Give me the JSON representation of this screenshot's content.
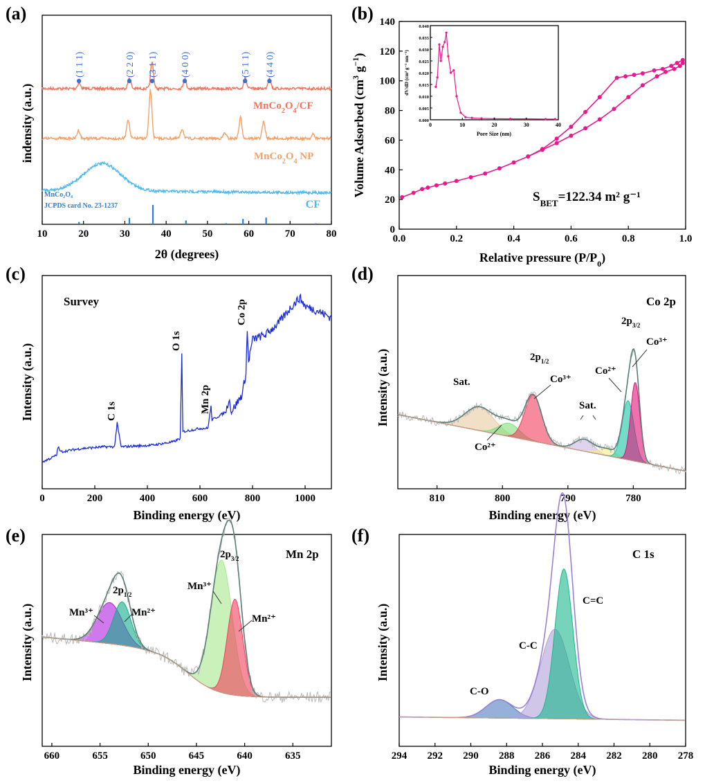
{
  "chart_data": [
    {
      "id": "a",
      "type": "line",
      "panel_label": "(a)",
      "xlabel": "2θ (degrees)",
      "ylabel": "indensity (a.u.)",
      "xlim": [
        10,
        80
      ],
      "xticks": [
        "10",
        "20",
        "30",
        "40",
        "50",
        "60",
        "70",
        "80"
      ],
      "series": [
        {
          "name": "MnCo₂O₄/CF",
          "color": "#f0735a",
          "peaks": [
            [
              18.9,
              8
            ],
            [
              31.1,
              16
            ],
            [
              36.6,
              38
            ],
            [
              44.5,
              14
            ],
            [
              59.1,
              16
            ],
            [
              65.0,
              16
            ]
          ],
          "baseline": 0.15
        },
        {
          "name": "MnCo₂O₄ NP",
          "color": "#f5a066",
          "peaks": [
            [
              18.8,
              12
            ],
            [
              30.8,
              28
            ],
            [
              36.2,
              70
            ],
            [
              43.9,
              14
            ],
            [
              54.2,
              8
            ],
            [
              58.0,
              30
            ],
            [
              63.6,
              24
            ],
            [
              75.6,
              6
            ]
          ],
          "baseline": 0.45
        },
        {
          "name": "CF",
          "color": "#4fb8ee",
          "broad_peak": [
            24.5,
            44
          ],
          "baseline": 0.74
        }
      ],
      "reference": {
        "label_line1": "MnCo₂O₄",
        "label_line2": "JCPDS card No. 23-1237",
        "color": "#2a7de1",
        "positions": [
          18.9,
          31.1,
          36.8,
          44.8,
          54.5,
          58.6,
          64.2,
          76.2
        ],
        "intensities": [
          0.12,
          0.33,
          1.0,
          0.2,
          0.06,
          0.28,
          0.35,
          0.05
        ]
      },
      "hkl_labels": [
        {
          "x": 18.9,
          "text": "(1 1 1)"
        },
        {
          "x": 31.1,
          "text": "(2 2 0)"
        },
        {
          "x": 36.6,
          "text": "(3 1 1)"
        },
        {
          "x": 44.5,
          "text": "(4 0 0)"
        },
        {
          "x": 59.1,
          "text": "(5 1 1)"
        },
        {
          "x": 65.0,
          "text": "(4 4 0)"
        }
      ]
    },
    {
      "id": "b",
      "type": "line",
      "panel_label": "(b)",
      "xlabel": "Relative pressure (P/P₀)",
      "ylabel": "Volume Adsorbed (cm³ g⁻¹)",
      "xlim": [
        0,
        1.0
      ],
      "ylim": [
        0,
        140
      ],
      "xticks": [
        "0.0",
        "0.2",
        "0.4",
        "0.6",
        "0.8",
        "1.0"
      ],
      "yticks": [
        "0",
        "20",
        "40",
        "60",
        "80",
        "100",
        "120",
        "140"
      ],
      "color": "#e6198f",
      "adsorption": {
        "x": [
          0.01,
          0.05,
          0.08,
          0.1,
          0.13,
          0.16,
          0.2,
          0.25,
          0.3,
          0.35,
          0.4,
          0.45,
          0.5,
          0.55,
          0.6,
          0.65,
          0.7,
          0.75,
          0.8,
          0.85,
          0.9,
          0.93,
          0.96,
          0.98,
          0.99
        ],
        "y": [
          21.5,
          24.5,
          27,
          28,
          29.5,
          30.8,
          32.5,
          35,
          37.5,
          41,
          45,
          49,
          53.5,
          58,
          63,
          68,
          74,
          81,
          89,
          97,
          103,
          106,
          108,
          110,
          112
        ]
      },
      "desorption": {
        "x": [
          0.99,
          0.97,
          0.95,
          0.92,
          0.89,
          0.85,
          0.82,
          0.79,
          0.76,
          0.7,
          0.65,
          0.6,
          0.55,
          0.5,
          0.45
        ],
        "y": [
          114,
          112,
          110,
          108,
          107,
          105,
          104,
          103,
          102,
          89,
          79,
          69,
          61,
          54,
          49
        ]
      },
      "annotation": "S",
      "annotation_sub": "BET",
      "annotation_rest": "=122.34 m² g⁻¹",
      "inset": {
        "xlabel": "Pore Size (nm)",
        "ylabel": "dV/dD (cm³ g⁻¹ nm⁻¹)",
        "xlim": [
          0,
          40
        ],
        "ylim": [
          0,
          0.04
        ],
        "xticks": [
          "0",
          "10",
          "20",
          "30",
          "40"
        ],
        "yticks": [
          "0.000",
          "0.005",
          "0.010",
          "0.015",
          "0.020",
          "0.025",
          "0.030",
          "0.035",
          "0.040"
        ],
        "x": [
          1.7,
          2.2,
          2.8,
          3.3,
          3.9,
          4.5,
          5.0,
          5.6,
          6.4,
          7.3,
          8.2,
          9.5,
          11,
          13,
          16,
          20,
          25,
          30,
          36,
          39
        ],
        "y": [
          0.014,
          0.018,
          0.032,
          0.025,
          0.031,
          0.033,
          0.037,
          0.027,
          0.02,
          0.021,
          0.01,
          0.003,
          0.0011,
          0.0008,
          0.0006,
          0.0005,
          0.0004,
          0.0004,
          0.0003,
          0.0003
        ]
      }
    },
    {
      "id": "c",
      "type": "line",
      "panel_label": "(c)",
      "title": "Survey",
      "xlabel": "Binding energy (eV)",
      "ylabel": "Intensity (a.u.)",
      "xlim": [
        0,
        1100
      ],
      "ylim": [
        0,
        1
      ],
      "xticks": [
        "0",
        "200",
        "400",
        "600",
        "800",
        "1000"
      ],
      "color": "#1a2bd4",
      "x": [
        0,
        30,
        55,
        60,
        70,
        150,
        240,
        275,
        285,
        300,
        420,
        500,
        525,
        531,
        535,
        600,
        630,
        642,
        646,
        700,
        710,
        720,
        760,
        775,
        780,
        785,
        800,
        850,
        900,
        950,
        980,
        1000,
        1050,
        1100
      ],
      "y": [
        0.02,
        0.04,
        0.06,
        0.11,
        0.08,
        0.1,
        0.11,
        0.11,
        0.25,
        0.11,
        0.12,
        0.14,
        0.16,
        0.66,
        0.2,
        0.22,
        0.22,
        0.35,
        0.27,
        0.32,
        0.4,
        0.32,
        0.42,
        0.55,
        0.8,
        0.62,
        0.75,
        0.78,
        0.85,
        0.95,
        1.0,
        0.95,
        0.92,
        0.88
      ],
      "labels": [
        {
          "x": 285,
          "text": "C 1s"
        },
        {
          "x": 531,
          "text": "O 1s"
        },
        {
          "x": 642,
          "text": "Mn 2p"
        },
        {
          "x": 780,
          "text": "Co 2p"
        }
      ]
    },
    {
      "id": "d",
      "type": "area",
      "panel_label": "(d)",
      "title": "Co 2p",
      "xlabel": "Binding energy (eV)",
      "ylabel": "Intensity (a.u.)",
      "xlim": [
        816,
        772
      ],
      "ylim": [
        0,
        1
      ],
      "xticks": [
        "810",
        "800",
        "790",
        "780"
      ],
      "background": [
        [
          816,
          0.48
        ],
        [
          772,
          0.05
        ]
      ],
      "peaks": [
        {
          "center": 803.5,
          "height": 0.18,
          "width": 2.2,
          "color": "#e8c9a0",
          "label": "Sat."
        },
        {
          "center": 799.0,
          "height": 0.1,
          "width": 1.6,
          "color": "#7fe07a",
          "label": "Co²⁺"
        },
        {
          "center": 795.3,
          "height": 0.35,
          "width": 1.3,
          "color": "#f23c5c",
          "label": "Co³⁺"
        },
        {
          "center": 787.5,
          "height": 0.09,
          "width": 1.4,
          "color": "#c9b7e0",
          "label": "Sat."
        },
        {
          "center": 784.0,
          "height": 0.05,
          "width": 1.3,
          "color": "#f5ee8a",
          "label": ""
        },
        {
          "center": 780.8,
          "height": 0.45,
          "width": 0.9,
          "color": "#19c4a5",
          "label": "Co²⁺"
        },
        {
          "center": 779.7,
          "height": 0.6,
          "width": 0.7,
          "color": "#e0137a",
          "label": "Co³⁺"
        }
      ],
      "labels": [
        "2p",
        "1/2",
        "2p",
        "3/2"
      ]
    },
    {
      "id": "e",
      "type": "area",
      "panel_label": "(e)",
      "title": "Mn 2p",
      "xlabel": "Binding energy (eV)",
      "ylabel": "Intensity (a.u.)",
      "xlim": [
        661,
        631
      ],
      "ylim": [
        0,
        1
      ],
      "xticks": [
        "660",
        "655",
        "650",
        "645",
        "640",
        "635"
      ],
      "peaks": [
        {
          "center": 654.0,
          "height": 0.18,
          "width": 1.3,
          "color": "#b020e0",
          "label": "Mn³⁺"
        },
        {
          "center": 652.7,
          "height": 0.19,
          "width": 0.9,
          "color": "#0fae87",
          "label": "Mn²⁺"
        },
        {
          "center": 642.4,
          "height": 0.58,
          "width": 1.1,
          "color": "#a8e88e",
          "label": "Mn³⁺"
        },
        {
          "center": 641.0,
          "height": 0.42,
          "width": 0.8,
          "color": "#f2405c",
          "label": "Mn²⁺"
        }
      ],
      "labels": [
        "2p",
        "1/2",
        "2p",
        "3/2"
      ]
    },
    {
      "id": "f",
      "type": "area",
      "panel_label": "(f)",
      "title": "C 1s",
      "xlabel": "Binding energy (eV)",
      "ylabel": "Intensity (a.u.)",
      "xlim": [
        294,
        278
      ],
      "ylim": [
        0,
        1
      ],
      "xticks": [
        "294",
        "292",
        "290",
        "288",
        "286",
        "284",
        "282",
        "280",
        "278"
      ],
      "peaks": [
        {
          "center": 288.4,
          "height": 0.07,
          "width": 0.75,
          "color": "#4f7dbf",
          "label": "C-O"
        },
        {
          "center": 285.3,
          "height": 0.34,
          "width": 0.8,
          "color": "#b0a0d8",
          "label": "C-C"
        },
        {
          "center": 284.8,
          "height": 0.57,
          "width": 0.5,
          "color": "#19b88c",
          "label": "C=C"
        }
      ]
    }
  ]
}
